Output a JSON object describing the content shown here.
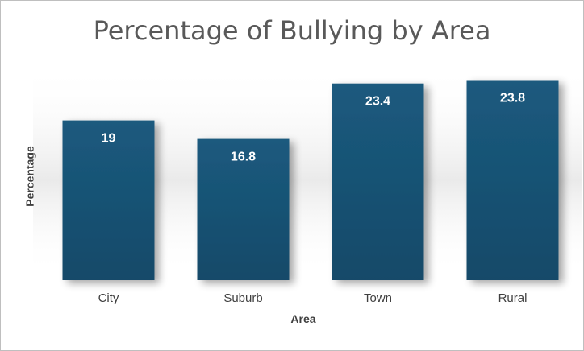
{
  "chart_data": {
    "type": "bar",
    "title": "Percentage of Bullying by Area",
    "xlabel": "Area",
    "ylabel": "Percentage",
    "categories": [
      "City",
      "Suburb",
      "Town",
      "Rural"
    ],
    "values": [
      19,
      16.8,
      23.4,
      23.8
    ],
    "data_labels": [
      "19",
      "16.8",
      "23.4",
      "23.8"
    ],
    "ylim": [
      0,
      26
    ],
    "grid": false,
    "legend": "none",
    "bar_color": "#1b5a7e",
    "bar_color_dark": "#154a69"
  }
}
